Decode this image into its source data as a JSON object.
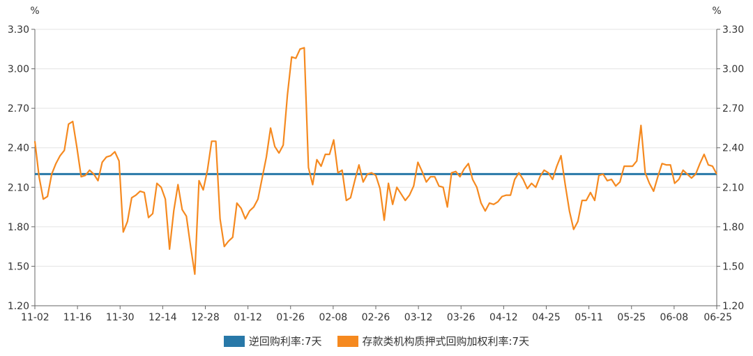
{
  "chart_data": {
    "type": "line",
    "y_unit_left": "%",
    "y_unit_right": "%",
    "ylim": [
      1.2,
      3.3
    ],
    "y_ticks": [
      "1.20",
      "1.50",
      "1.80",
      "2.10",
      "2.40",
      "2.70",
      "3.00",
      "3.30"
    ],
    "x_tick_labels": [
      "11-02",
      "11-16",
      "11-30",
      "12-14",
      "12-28",
      "01-12",
      "01-26",
      "02-08",
      "02-26",
      "03-12",
      "03-26",
      "04-12",
      "04-25",
      "05-11",
      "05-25",
      "06-08",
      "06-25"
    ],
    "grid": true,
    "legend_position": "bottom",
    "series": [
      {
        "name": "逆回购利率:7天",
        "color": "#2878a8",
        "values": [
          2.2,
          2.2
        ]
      },
      {
        "name": "存款类机构质押式回购加权利率:7天",
        "color": "#f5891f",
        "values": [
          2.45,
          2.18,
          2.01,
          2.03,
          2.2,
          2.28,
          2.34,
          2.38,
          2.58,
          2.6,
          2.4,
          2.18,
          2.19,
          2.23,
          2.2,
          2.15,
          2.29,
          2.33,
          2.34,
          2.37,
          2.3,
          1.76,
          1.84,
          2.02,
          2.04,
          2.07,
          2.06,
          1.87,
          1.9,
          2.13,
          2.1,
          2.01,
          1.63,
          1.92,
          2.12,
          1.93,
          1.88,
          1.65,
          1.44,
          2.15,
          2.08,
          2.23,
          2.45,
          2.45,
          1.86,
          1.65,
          1.69,
          1.72,
          1.98,
          1.94,
          1.86,
          1.92,
          1.95,
          2.01,
          2.17,
          2.33,
          2.55,
          2.41,
          2.36,
          2.42,
          2.8,
          3.09,
          3.08,
          3.15,
          3.16,
          2.25,
          2.12,
          2.31,
          2.26,
          2.35,
          2.35,
          2.46,
          2.21,
          2.23,
          2.0,
          2.02,
          2.15,
          2.27,
          2.14,
          2.2,
          2.21,
          2.19,
          2.09,
          1.85,
          2.13,
          1.97,
          2.1,
          2.05,
          2.0,
          2.04,
          2.11,
          2.29,
          2.22,
          2.14,
          2.18,
          2.18,
          2.11,
          2.1,
          1.95,
          2.21,
          2.22,
          2.18,
          2.24,
          2.28,
          2.16,
          2.1,
          1.98,
          1.92,
          1.98,
          1.97,
          1.99,
          2.03,
          2.04,
          2.04,
          2.16,
          2.21,
          2.16,
          2.09,
          2.13,
          2.1,
          2.18,
          2.23,
          2.21,
          2.16,
          2.26,
          2.34,
          2.12,
          1.92,
          1.78,
          1.84,
          2.0,
          2.0,
          2.06,
          2.0,
          2.19,
          2.2,
          2.15,
          2.16,
          2.11,
          2.14,
          2.26,
          2.26,
          2.26,
          2.3,
          2.57,
          2.21,
          2.13,
          2.07,
          2.18,
          2.28,
          2.27,
          2.27,
          2.13,
          2.16,
          2.23,
          2.2,
          2.17,
          2.2,
          2.28,
          2.35,
          2.27,
          2.26,
          2.2
        ]
      }
    ]
  }
}
